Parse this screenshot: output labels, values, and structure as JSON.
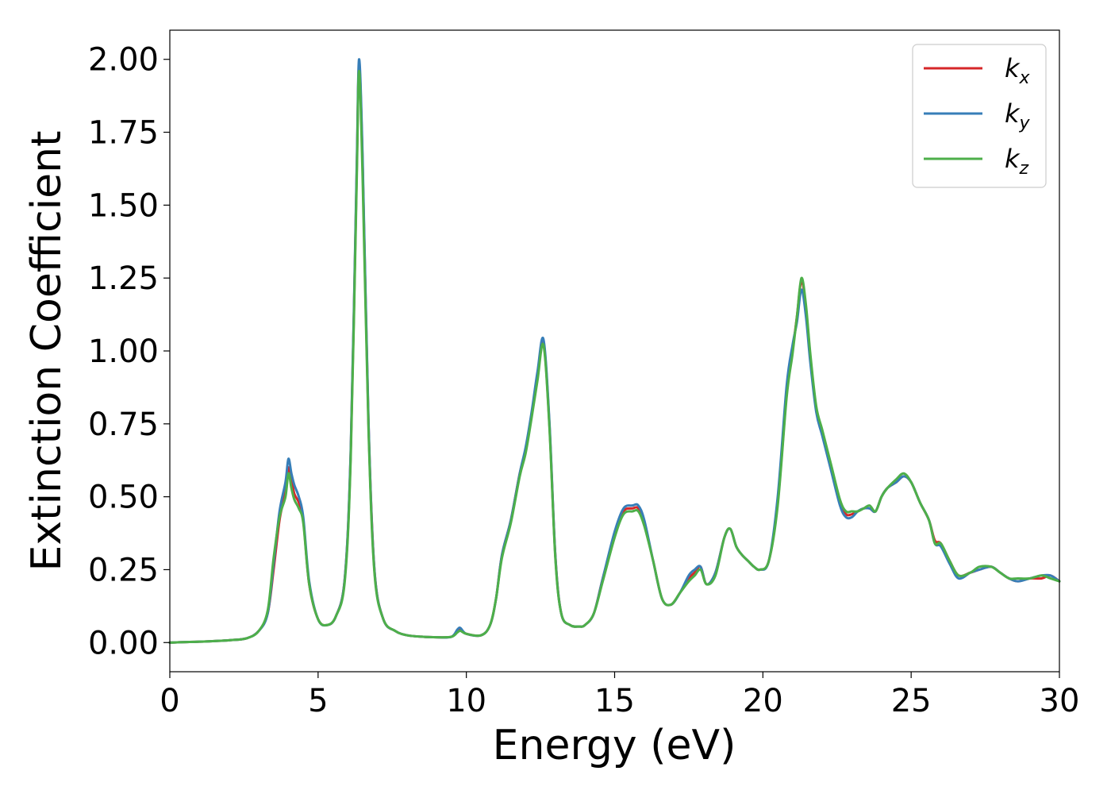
{
  "chart_data": {
    "type": "line",
    "xlabel": "Energy (eV)",
    "ylabel": "Extinction Coefficient",
    "xlim": [
      0,
      30
    ],
    "ylim": [
      -0.1,
      2.1
    ],
    "xticks": [
      0,
      5,
      10,
      15,
      20,
      25,
      30
    ],
    "xtick_labels": [
      "0",
      "5",
      "10",
      "15",
      "20",
      "25",
      "30"
    ],
    "yticks": [
      0.0,
      0.25,
      0.5,
      0.75,
      1.0,
      1.25,
      1.5,
      1.75,
      2.0
    ],
    "ytick_labels": [
      "0.00",
      "0.25",
      "0.50",
      "0.75",
      "1.00",
      "1.25",
      "1.50",
      "1.75",
      "2.00"
    ],
    "grid": false,
    "legend_position": "top-right",
    "x": [
      0,
      1,
      2,
      2.6,
      3.0,
      3.3,
      3.5,
      3.7,
      3.9,
      4.0,
      4.1,
      4.2,
      4.35,
      4.5,
      4.7,
      5.0,
      5.3,
      5.6,
      5.9,
      6.1,
      6.3,
      6.38,
      6.5,
      6.7,
      6.9,
      7.2,
      7.6,
      8.0,
      8.5,
      9.0,
      9.5,
      9.7,
      9.8,
      10.0,
      10.5,
      10.8,
      11.0,
      11.2,
      11.5,
      11.8,
      12.0,
      12.2,
      12.4,
      12.6,
      12.8,
      13.0,
      13.2,
      13.5,
      13.8,
      14.0,
      14.3,
      14.6,
      15.0,
      15.3,
      15.6,
      15.8,
      16.0,
      16.3,
      16.6,
      16.9,
      17.2,
      17.5,
      17.7,
      17.9,
      18.1,
      18.4,
      18.7,
      18.9,
      19.1,
      19.3,
      19.5,
      19.7,
      19.9,
      20.2,
      20.5,
      20.8,
      21.0,
      21.15,
      21.3,
      21.45,
      21.6,
      21.8,
      22.0,
      22.3,
      22.6,
      22.8,
      23.0,
      23.2,
      23.4,
      23.6,
      23.8,
      24.0,
      24.2,
      24.5,
      24.75,
      25.0,
      25.3,
      25.6,
      25.8,
      26.0,
      26.3,
      26.6,
      27.0,
      27.3,
      27.7,
      28.0,
      28.3,
      28.6,
      29.0,
      29.4,
      29.7,
      30.0
    ],
    "series": [
      {
        "name": "k_x",
        "color": "#d62728",
        "values": [
          0.0,
          0.003,
          0.008,
          0.015,
          0.04,
          0.1,
          0.25,
          0.42,
          0.52,
          0.6,
          0.56,
          0.51,
          0.48,
          0.42,
          0.2,
          0.08,
          0.06,
          0.09,
          0.22,
          0.65,
          1.6,
          1.98,
          1.65,
          0.75,
          0.25,
          0.08,
          0.04,
          0.025,
          0.02,
          0.018,
          0.02,
          0.04,
          0.045,
          0.03,
          0.025,
          0.06,
          0.15,
          0.3,
          0.42,
          0.58,
          0.66,
          0.78,
          0.92,
          1.03,
          0.75,
          0.3,
          0.1,
          0.06,
          0.055,
          0.06,
          0.1,
          0.22,
          0.37,
          0.45,
          0.46,
          0.46,
          0.41,
          0.28,
          0.15,
          0.13,
          0.17,
          0.22,
          0.24,
          0.26,
          0.2,
          0.24,
          0.36,
          0.39,
          0.33,
          0.3,
          0.28,
          0.26,
          0.25,
          0.28,
          0.48,
          0.85,
          1.0,
          1.12,
          1.24,
          1.15,
          0.98,
          0.8,
          0.72,
          0.6,
          0.48,
          0.44,
          0.44,
          0.45,
          0.46,
          0.46,
          0.45,
          0.5,
          0.53,
          0.55,
          0.57,
          0.55,
          0.48,
          0.42,
          0.35,
          0.34,
          0.28,
          0.23,
          0.24,
          0.25,
          0.26,
          0.24,
          0.22,
          0.21,
          0.22,
          0.22,
          0.23,
          0.21
        ]
      },
      {
        "name": "k_y",
        "color": "#377eb8",
        "values": [
          0.0,
          0.003,
          0.008,
          0.015,
          0.04,
          0.1,
          0.27,
          0.45,
          0.55,
          0.63,
          0.58,
          0.54,
          0.5,
          0.43,
          0.21,
          0.08,
          0.06,
          0.09,
          0.22,
          0.66,
          1.62,
          2.0,
          1.67,
          0.76,
          0.25,
          0.08,
          0.04,
          0.025,
          0.02,
          0.018,
          0.02,
          0.045,
          0.05,
          0.03,
          0.025,
          0.06,
          0.15,
          0.3,
          0.42,
          0.58,
          0.67,
          0.79,
          0.93,
          1.04,
          0.76,
          0.3,
          0.1,
          0.06,
          0.055,
          0.06,
          0.1,
          0.22,
          0.38,
          0.46,
          0.47,
          0.47,
          0.42,
          0.28,
          0.15,
          0.13,
          0.17,
          0.23,
          0.25,
          0.26,
          0.2,
          0.24,
          0.36,
          0.39,
          0.33,
          0.3,
          0.28,
          0.26,
          0.25,
          0.28,
          0.5,
          0.88,
          1.02,
          1.1,
          1.21,
          1.12,
          0.96,
          0.79,
          0.71,
          0.59,
          0.47,
          0.43,
          0.43,
          0.45,
          0.46,
          0.46,
          0.45,
          0.5,
          0.53,
          0.55,
          0.57,
          0.55,
          0.48,
          0.42,
          0.34,
          0.33,
          0.27,
          0.22,
          0.24,
          0.25,
          0.26,
          0.24,
          0.22,
          0.21,
          0.22,
          0.23,
          0.23,
          0.21
        ]
      },
      {
        "name": "k_z",
        "color": "#4daf4a",
        "values": [
          0.0,
          0.003,
          0.008,
          0.015,
          0.04,
          0.11,
          0.29,
          0.43,
          0.5,
          0.58,
          0.53,
          0.49,
          0.46,
          0.41,
          0.2,
          0.08,
          0.06,
          0.09,
          0.21,
          0.63,
          1.57,
          1.96,
          1.6,
          0.73,
          0.24,
          0.08,
          0.04,
          0.025,
          0.02,
          0.018,
          0.02,
          0.035,
          0.04,
          0.03,
          0.025,
          0.06,
          0.15,
          0.29,
          0.41,
          0.57,
          0.65,
          0.77,
          0.9,
          1.02,
          0.74,
          0.29,
          0.1,
          0.06,
          0.055,
          0.06,
          0.1,
          0.21,
          0.36,
          0.44,
          0.45,
          0.45,
          0.4,
          0.28,
          0.15,
          0.13,
          0.17,
          0.21,
          0.23,
          0.25,
          0.2,
          0.23,
          0.36,
          0.39,
          0.33,
          0.3,
          0.28,
          0.26,
          0.25,
          0.28,
          0.47,
          0.84,
          0.99,
          1.12,
          1.25,
          1.16,
          0.99,
          0.81,
          0.73,
          0.61,
          0.49,
          0.45,
          0.45,
          0.45,
          0.46,
          0.47,
          0.45,
          0.5,
          0.53,
          0.56,
          0.58,
          0.55,
          0.48,
          0.42,
          0.34,
          0.34,
          0.28,
          0.23,
          0.24,
          0.26,
          0.26,
          0.24,
          0.22,
          0.22,
          0.22,
          0.23,
          0.22,
          0.21
        ]
      }
    ]
  },
  "legend": [
    {
      "base": "k",
      "sub": "x"
    },
    {
      "base": "k",
      "sub": "y"
    },
    {
      "base": "k",
      "sub": "z"
    }
  ]
}
